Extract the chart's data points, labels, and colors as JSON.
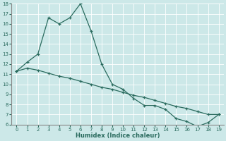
{
  "xlabel": "Humidex (Indice chaleur)",
  "ylabel": "",
  "background_color": "#cce8e8",
  "grid_color": "#ffffff",
  "line_color": "#2a6b5e",
  "x": [
    0,
    1,
    2,
    3,
    4,
    5,
    6,
    7,
    8,
    9,
    10,
    11,
    12,
    13,
    14,
    15,
    16,
    17,
    18,
    19
  ],
  "y_upper": [
    11.3,
    12.2,
    13.0,
    16.6,
    16.0,
    16.6,
    18.0,
    15.3,
    12.0,
    10.0,
    9.5,
    8.6,
    7.9,
    7.9,
    7.5,
    6.6,
    6.3,
    5.8,
    6.2,
    7.0
  ],
  "y_lower": [
    11.3,
    11.6,
    11.4,
    11.1,
    10.8,
    10.6,
    10.3,
    10.0,
    9.7,
    9.5,
    9.2,
    8.9,
    8.7,
    8.4,
    8.1,
    7.8,
    7.6,
    7.3,
    7.0,
    7.0
  ],
  "ylim": [
    6,
    18
  ],
  "xlim": [
    -0.5,
    19.5
  ],
  "yticks": [
    6,
    7,
    8,
    9,
    10,
    11,
    12,
    13,
    14,
    15,
    16,
    17,
    18
  ],
  "xticks": [
    0,
    1,
    2,
    3,
    4,
    5,
    6,
    7,
    8,
    9,
    10,
    11,
    12,
    13,
    14,
    15,
    16,
    17,
    18,
    19
  ]
}
